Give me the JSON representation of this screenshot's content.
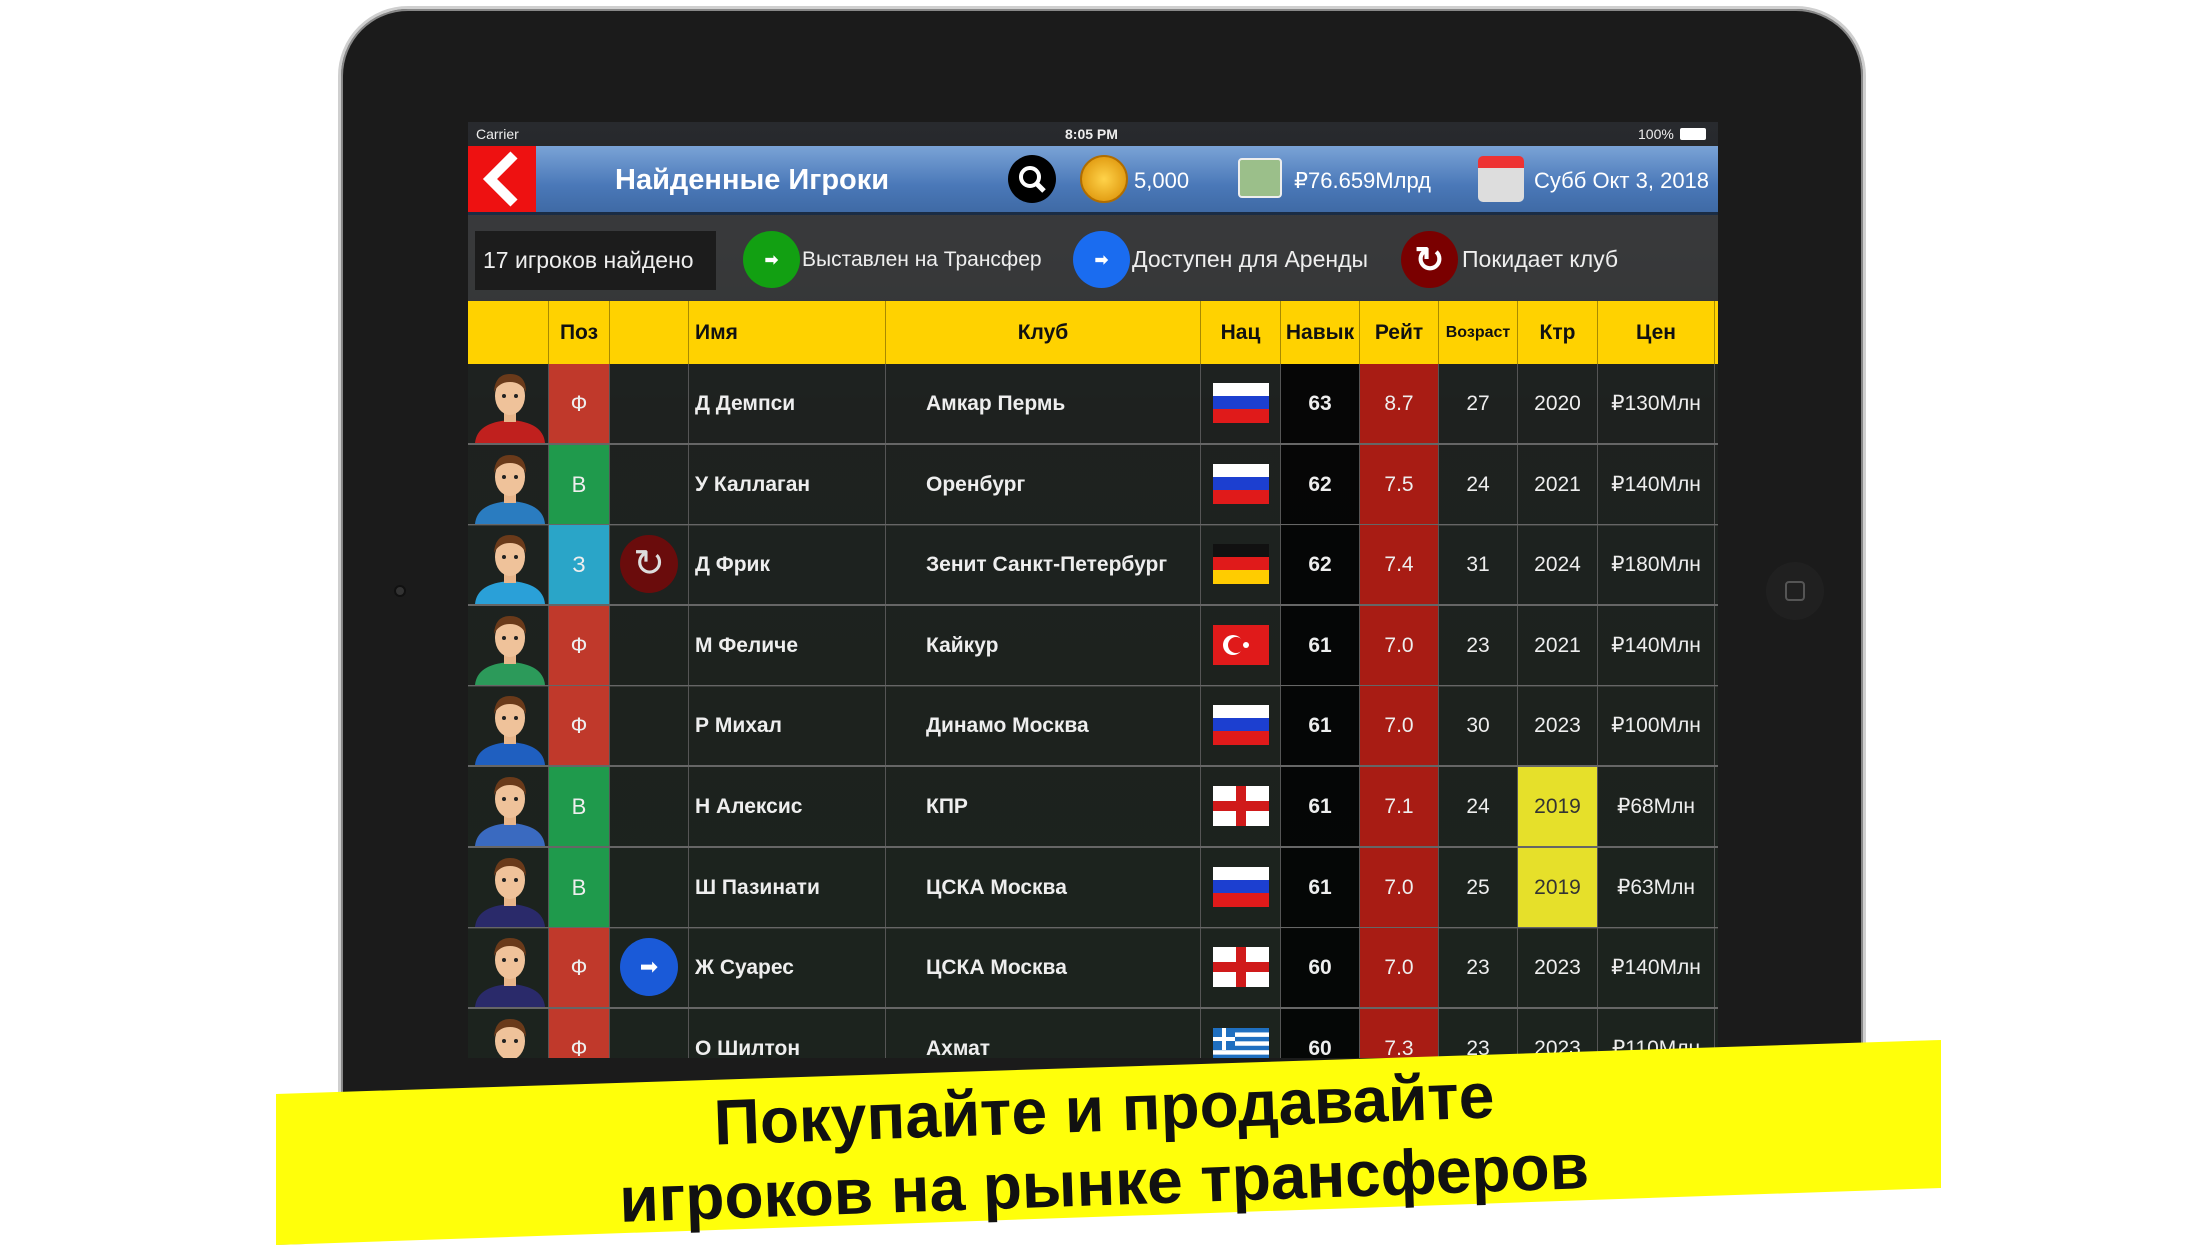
{
  "status": {
    "carrier": "Carrier",
    "time": "8:05 PM",
    "battery": "100%"
  },
  "header": {
    "title": "Найденные Игроки",
    "coins": "5,000",
    "money": "₽76.659Млрд",
    "date": "Субб Окт 3, 2018"
  },
  "toolbar": {
    "found": "17 игроков найдено",
    "transfer": "Выставлен на Трансфер",
    "loan": "Доступен для Аренды",
    "leaving": "Покидает клуб"
  },
  "columns": [
    "",
    "Поз",
    "",
    "Имя",
    "Клуб",
    "Нац",
    "Навык",
    "Рейт",
    "Возраст",
    "Ктр",
    "Цен"
  ],
  "colors": {
    "pos_F": "#c0392b",
    "pos_V": "#1f9a4c",
    "pos_Z": "#2aa5c8",
    "rating": "#a81c14",
    "highlight": "#e6e02a",
    "header": "#ffd200"
  },
  "players": [
    {
      "pos": "Ф",
      "status": "",
      "name": "Д Демпси",
      "club": "Амкар Пермь",
      "flag": "russia",
      "skill": "63",
      "rating": "8.7",
      "age": "27",
      "contract": "2020",
      "price": "₽130Млн",
      "shirt": "#c0201e"
    },
    {
      "pos": "В",
      "status": "",
      "name": "У Каллаган",
      "club": "Оренбург",
      "flag": "russia",
      "skill": "62",
      "rating": "7.5",
      "age": "24",
      "contract": "2021",
      "price": "₽140Млн",
      "shirt": "#2a7cc0"
    },
    {
      "pos": "З",
      "status": "leaving",
      "name": "Д Фрик",
      "club": "Зенит Санкт-Петербург",
      "flag": "germany",
      "skill": "62",
      "rating": "7.4",
      "age": "31",
      "contract": "2024",
      "price": "₽180Млн",
      "shirt": "#2aa0d8"
    },
    {
      "pos": "Ф",
      "status": "",
      "name": "М Феличе",
      "club": "Кайкур",
      "flag": "turkey",
      "skill": "61",
      "rating": "7.0",
      "age": "23",
      "contract": "2021",
      "price": "₽140Млн",
      "shirt": "#2c9a5a"
    },
    {
      "pos": "Ф",
      "status": "",
      "name": "Р Михал",
      "club": "Динамо Москва",
      "flag": "russia",
      "skill": "61",
      "rating": "7.0",
      "age": "30",
      "contract": "2023",
      "price": "₽100Млн",
      "shirt": "#1f5fc0"
    },
    {
      "pos": "В",
      "status": "",
      "name": "Н Алексис",
      "club": "КПР",
      "flag": "england",
      "skill": "61",
      "rating": "7.1",
      "age": "24",
      "contract": "2019",
      "price": "₽68Млн",
      "shirt": "#3a6ac0",
      "expiring": true
    },
    {
      "pos": "В",
      "status": "",
      "name": "Ш Пазинати",
      "club": "ЦСКА Москва",
      "flag": "russia",
      "skill": "61",
      "rating": "7.0",
      "age": "25",
      "contract": "2019",
      "price": "₽63Млн",
      "shirt": "#2a2a6a",
      "expiring": true
    },
    {
      "pos": "Ф",
      "status": "loan",
      "name": "Ж Суарес",
      "club": "ЦСКА Москва",
      "flag": "england",
      "skill": "60",
      "rating": "7.0",
      "age": "23",
      "contract": "2023",
      "price": "₽140Млн",
      "shirt": "#2a2a6a"
    },
    {
      "pos": "Ф",
      "status": "",
      "name": "О Шилтон",
      "club": "Ахмат",
      "flag": "greece",
      "skill": "60",
      "rating": "7.3",
      "age": "23",
      "contract": "2023",
      "price": "₽110Млн",
      "shirt": "#2a6a3a"
    }
  ],
  "banner": {
    "line1": "Покупайте и продавайте",
    "line2": "игроков на рынке трансферов"
  }
}
